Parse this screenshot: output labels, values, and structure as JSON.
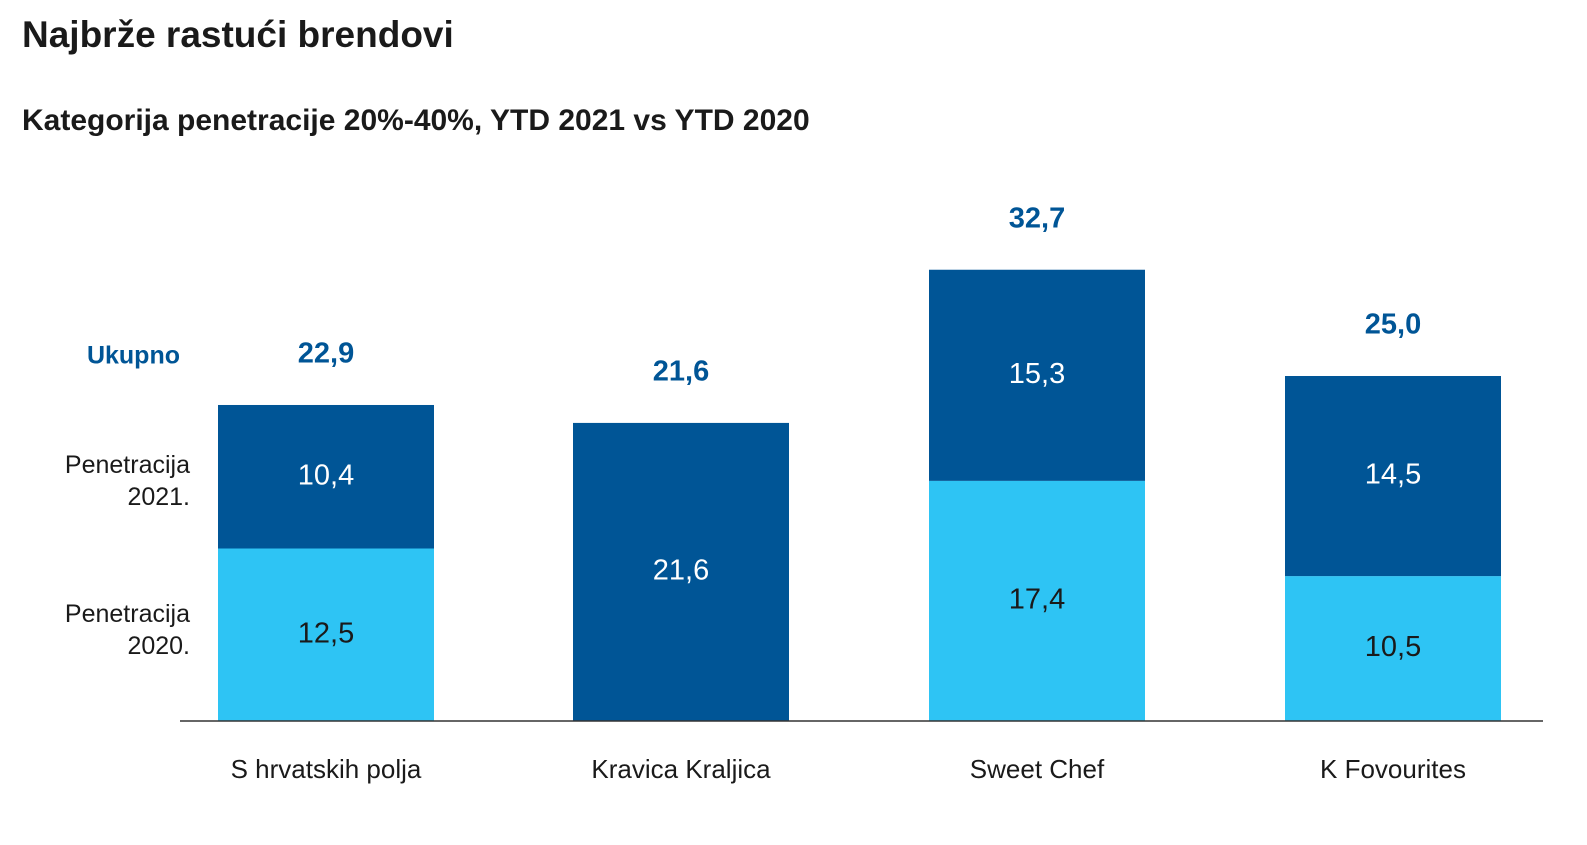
{
  "header": {
    "title": "Najbrže rastući brendovi",
    "subtitle": "Kategorija penetracije 20%-40%, YTD 2021 vs YTD 2020"
  },
  "colors": {
    "dark_blue": "#005596",
    "light_blue": "#2ec4f4",
    "axis": "#333333",
    "text": "#1a1a1a"
  },
  "chart_data": {
    "type": "bar",
    "stacked": true,
    "categories": [
      "S hrvatskih polja",
      "Kravica Kraljica",
      "Sweet Chef",
      "K Fovourites"
    ],
    "series": [
      {
        "name": "Penetracija 2020.",
        "values": [
          12.5,
          null,
          17.4,
          10.5
        ],
        "labels": [
          "12,5",
          "",
          "17,4",
          "10,5"
        ]
      },
      {
        "name": "Penetracija 2021.",
        "values": [
          10.4,
          21.6,
          15.3,
          14.5
        ],
        "labels": [
          "10,4",
          "21,6",
          "15,3",
          "14,5"
        ]
      }
    ],
    "totals": {
      "name": "Ukupno",
      "values": [
        22.9,
        21.6,
        32.7,
        25.0
      ],
      "labels": [
        "22,9",
        "21,6",
        "32,7",
        "25,0"
      ]
    },
    "title": "Najbrže rastući brendovi",
    "subtitle": "Kategorija penetracije 20%-40%, YTD 2021 vs YTD 2020",
    "xlabel": "",
    "ylabel": "",
    "ylim": [
      0,
      32.7
    ],
    "grid": false,
    "legend": "left"
  }
}
